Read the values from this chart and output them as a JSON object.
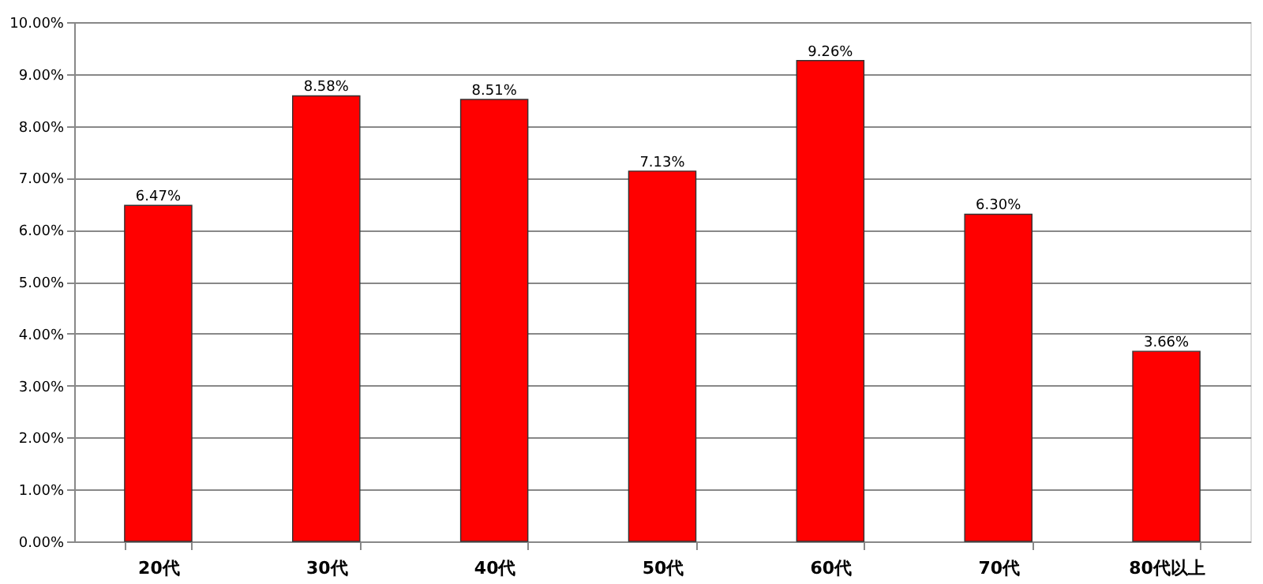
{
  "chart_data": {
    "type": "bar",
    "categories": [
      "20代",
      "30代",
      "40代",
      "50代",
      "60代",
      "70代",
      "80代以上"
    ],
    "values": [
      6.47,
      8.58,
      8.51,
      7.13,
      9.26,
      6.3,
      3.66
    ],
    "value_labels": [
      "6.47%",
      "8.58%",
      "8.51%",
      "7.13%",
      "9.26%",
      "6.30%",
      "3.66%"
    ],
    "color": "#ff0000",
    "ylim": [
      0,
      10
    ],
    "yticks": [
      {
        "value": 0,
        "label": "0.00%"
      },
      {
        "value": 1,
        "label": "1.00%"
      },
      {
        "value": 2,
        "label": "2.00%"
      },
      {
        "value": 3,
        "label": "3.00%"
      },
      {
        "value": 4,
        "label": "4.00%"
      },
      {
        "value": 5,
        "label": "5.00%"
      },
      {
        "value": 6,
        "label": "6.00%"
      },
      {
        "value": 7,
        "label": "7.00%"
      },
      {
        "value": 8,
        "label": "8.00%"
      },
      {
        "value": 9,
        "label": "9.00%"
      },
      {
        "value": 10,
        "label": "10.00%"
      }
    ],
    "grid": "y"
  }
}
